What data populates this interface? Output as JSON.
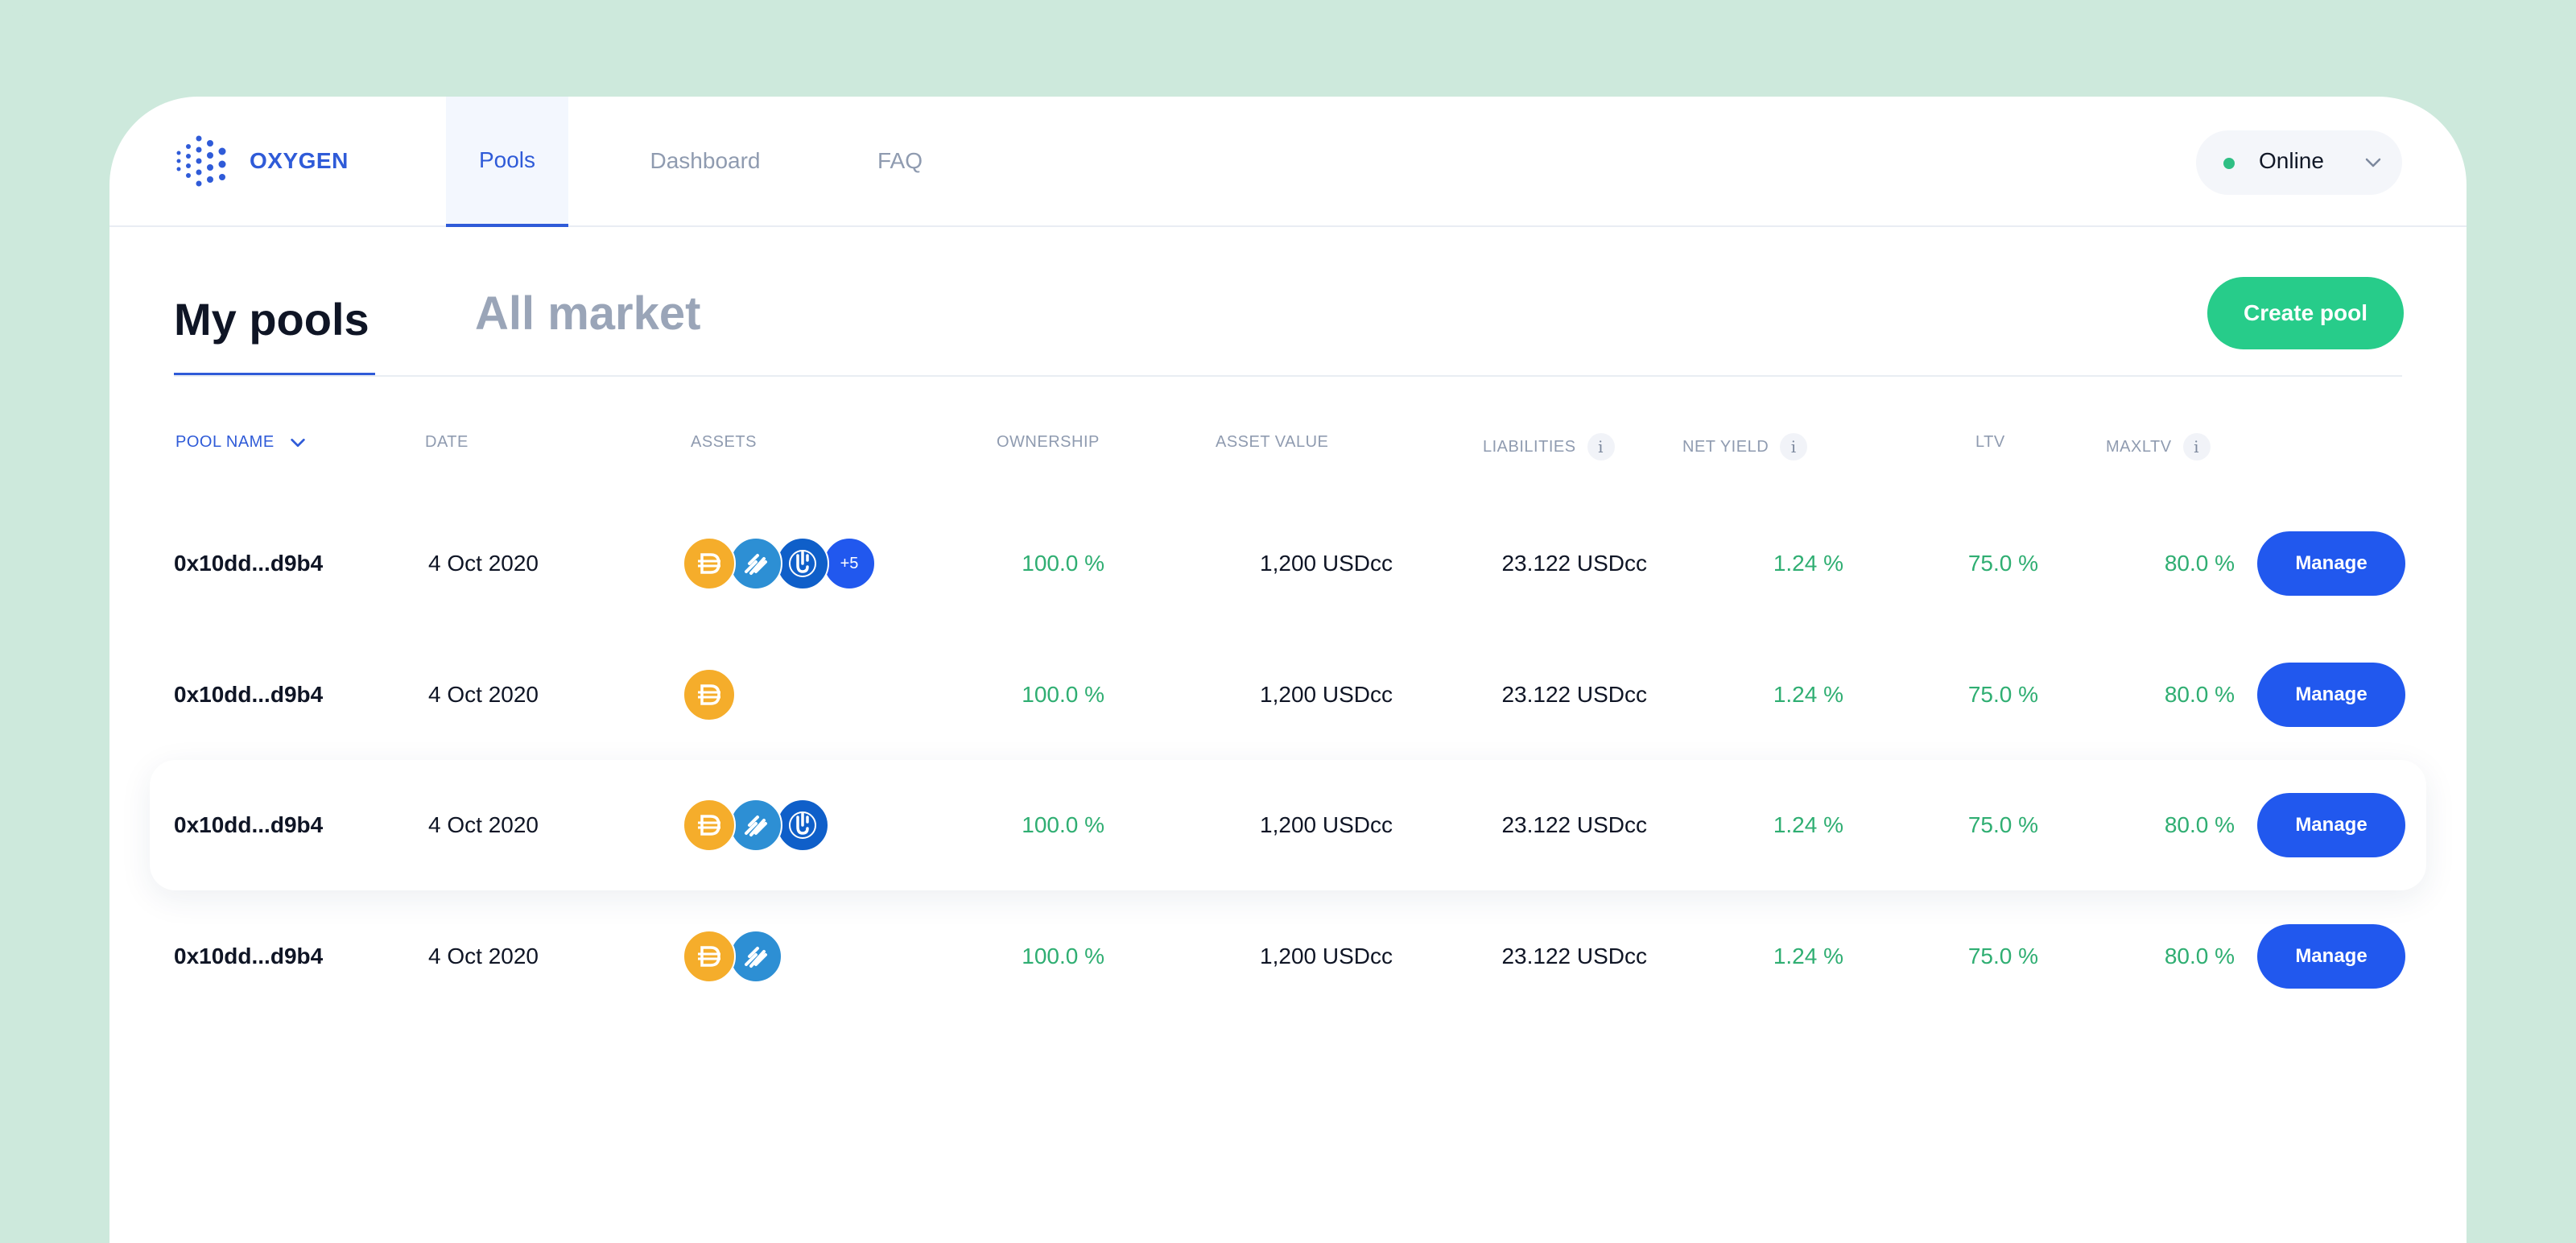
{
  "app": {
    "brand": "OXYGEN"
  },
  "nav": {
    "tabs": [
      {
        "label": "Pools",
        "active": true
      },
      {
        "label": "Dashboard",
        "active": false
      },
      {
        "label": "FAQ",
        "active": false
      }
    ],
    "status": {
      "label": "Online",
      "color": "#2fbf84"
    }
  },
  "pool_tabs": {
    "my": "My pools",
    "all": "All market"
  },
  "actions": {
    "create_label": "Create pool"
  },
  "table": {
    "headers": {
      "pool_name": "POOL NAME",
      "date": "DATE",
      "assets": "ASSETS",
      "ownership": "OWNERSHIP",
      "asset_value": "ASSET VALUE",
      "liabilities": "LIABILITIES",
      "net_yield": "NET YIELD",
      "ltv": "LTV",
      "maxltv": "MAXLTV"
    },
    "rows": [
      {
        "name": "0x10dd...d9b4",
        "date": "4 Oct 2020",
        "assets": [
          "dai-coin-icon",
          "sfi-coin-icon",
          "yfi-coin-icon"
        ],
        "more": "+5",
        "ownership": "100.0 %",
        "asset_value": "1,200 USDcc",
        "liabilities": "23.122 USDcc",
        "net_yield": "1.24 %",
        "ltv": "75.0 %",
        "maxltv": "80.0 %",
        "action": "Manage"
      },
      {
        "name": "0x10dd...d9b4",
        "date": "4 Oct 2020",
        "assets": [
          "dai-coin-icon"
        ],
        "more": "",
        "ownership": "100.0 %",
        "asset_value": "1,200 USDcc",
        "liabilities": "23.122 USDcc",
        "net_yield": "1.24 %",
        "ltv": "75.0 %",
        "maxltv": "80.0 %",
        "action": "Manage"
      },
      {
        "name": "0x10dd...d9b4",
        "date": "4 Oct 2020",
        "assets": [
          "dai-coin-icon",
          "sfi-coin-icon",
          "yfi-coin-icon"
        ],
        "more": "",
        "ownership": "100.0 %",
        "asset_value": "1,200 USDcc",
        "liabilities": "23.122 USDcc",
        "net_yield": "1.24 %",
        "ltv": "75.0 %",
        "maxltv": "80.0 %",
        "action": "Manage"
      },
      {
        "name": "0x10dd...d9b4",
        "date": "4 Oct 2020",
        "assets": [
          "dai-coin-icon",
          "sfi-coin-icon"
        ],
        "more": "",
        "ownership": "100.0 %",
        "asset_value": "1,200 USDcc",
        "liabilities": "23.122 USDcc",
        "net_yield": "1.24 %",
        "ltv": "75.0 %",
        "maxltv": "80.0 %",
        "action": "Manage"
      }
    ]
  },
  "colors": {
    "accent": "#2f5bd8",
    "button": "#2158ee",
    "positive": "#2fae72",
    "create": "#27cc8a"
  }
}
